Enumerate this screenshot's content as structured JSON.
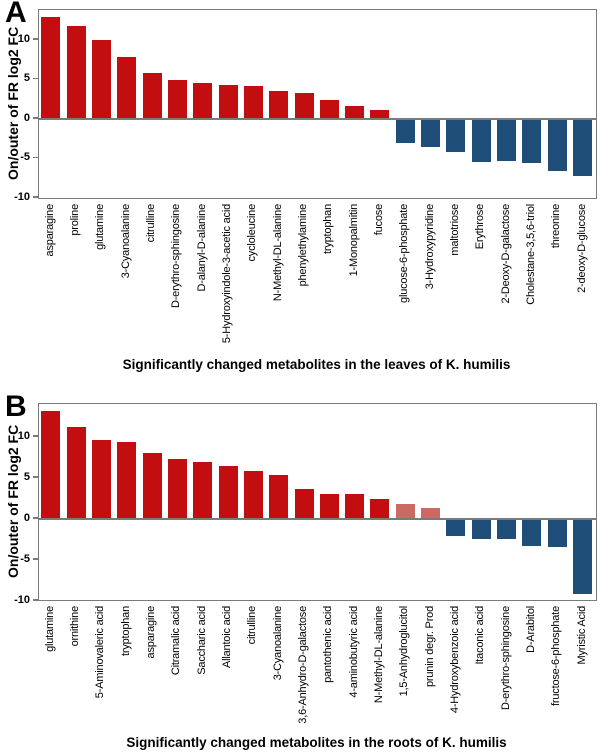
{
  "colors": {
    "red": "#c20d11",
    "pink": "#ca6a62",
    "blue": "#1f4e79",
    "axis": "#7a7a7a"
  },
  "chart_data": [
    {
      "panel": "A",
      "type": "bar",
      "title": "Significantly changed metabolites in the leaves of K. humilis",
      "ylabel": "On/outer of FR log2 FC",
      "ylim": [
        -10,
        13.8
      ],
      "yticks": [
        10,
        5,
        0,
        -5,
        -10
      ],
      "grid": false,
      "bars": [
        {
          "label": "asparagine",
          "value": 12.9,
          "color": "red"
        },
        {
          "label": "proline",
          "value": 11.8,
          "color": "red"
        },
        {
          "label": "glutamine",
          "value": 10.0,
          "color": "red"
        },
        {
          "label": "3-Cyanoalanine",
          "value": 7.8,
          "color": "red"
        },
        {
          "label": "citrulline",
          "value": 5.8,
          "color": "red"
        },
        {
          "label": "D-erythro-sphingosine",
          "value": 4.9,
          "color": "red"
        },
        {
          "label": "D-alanyl-D-alanine",
          "value": 4.6,
          "color": "red"
        },
        {
          "label": "5-Hydroxyindole-3-acetic acid",
          "value": 4.3,
          "color": "red"
        },
        {
          "label": "cycloleucine",
          "value": 4.2,
          "color": "red"
        },
        {
          "label": "N-Methyl-DL-alanine",
          "value": 3.5,
          "color": "red"
        },
        {
          "label": "phenylethylamine",
          "value": 3.3,
          "color": "red"
        },
        {
          "label": "tryptophan",
          "value": 2.4,
          "color": "red"
        },
        {
          "label": "1-Monopalmitin",
          "value": 1.7,
          "color": "red"
        },
        {
          "label": "fucose",
          "value": 1.1,
          "color": "red"
        },
        {
          "label": "glucose-6-phosphate",
          "value": -3.0,
          "color": "blue"
        },
        {
          "label": "3-Hydroxypyridine",
          "value": -3.5,
          "color": "blue"
        },
        {
          "label": "maltotriose",
          "value": -4.2,
          "color": "blue"
        },
        {
          "label": "Erythrose",
          "value": -5.4,
          "color": "blue"
        },
        {
          "label": "2-Deoxy-D-galactose",
          "value": -5.3,
          "color": "blue"
        },
        {
          "label": "Cholestane-3,5,6-triol",
          "value": -5.6,
          "color": "blue"
        },
        {
          "label": "threonine",
          "value": -6.6,
          "color": "blue"
        },
        {
          "label": "2-deoxy-D-glucose",
          "value": -7.2,
          "color": "blue"
        }
      ]
    },
    {
      "panel": "B",
      "type": "bar",
      "title": "Significantly changed metabolites in the roots of K. humilis",
      "ylabel": "On/outer of FR log2 FC",
      "ylim": [
        -10,
        13.9
      ],
      "yticks": [
        10,
        5,
        0,
        -5,
        -10
      ],
      "grid": false,
      "bars": [
        {
          "label": "glutamine",
          "value": 13.2,
          "color": "red"
        },
        {
          "label": "ornithine",
          "value": 11.2,
          "color": "red"
        },
        {
          "label": "5-Aminovaleric acid",
          "value": 9.6,
          "color": "red"
        },
        {
          "label": "tryptophan",
          "value": 9.4,
          "color": "red"
        },
        {
          "label": "asparagine",
          "value": 8.1,
          "color": "red"
        },
        {
          "label": "Citramalic acid",
          "value": 7.3,
          "color": "red"
        },
        {
          "label": "Saccharic acid",
          "value": 7.0,
          "color": "red"
        },
        {
          "label": "Allantoic acid",
          "value": 6.5,
          "color": "red"
        },
        {
          "label": "citrulline",
          "value": 5.9,
          "color": "red"
        },
        {
          "label": "3-Cyanoalanine",
          "value": 5.4,
          "color": "red"
        },
        {
          "label": "3,6-Anhydro-D-galactose",
          "value": 3.6,
          "color": "red"
        },
        {
          "label": "pantothenic acid",
          "value": 3.0,
          "color": "red"
        },
        {
          "label": "4-aminobutyric acid",
          "value": 3.0,
          "color": "red"
        },
        {
          "label": "N-Methyl-DL-alanine",
          "value": 2.4,
          "color": "red"
        },
        {
          "label": "1,5-Anhydroglucitol",
          "value": 1.8,
          "color": "pink"
        },
        {
          "label": "prunin degr. Prod",
          "value": 1.4,
          "color": "pink"
        },
        {
          "label": "4-Hydroxybenzoic acid",
          "value": -2.1,
          "color": "blue"
        },
        {
          "label": "Itaconic acid",
          "value": -2.4,
          "color": "blue"
        },
        {
          "label": "D-erythro-sphingosine",
          "value": -2.4,
          "color": "blue"
        },
        {
          "label": "D-Arabitol",
          "value": -3.3,
          "color": "blue"
        },
        {
          "label": "fructose-6-phosphate",
          "value": -3.4,
          "color": "blue"
        },
        {
          "label": "Myristic Acid",
          "value": -9.2,
          "color": "blue"
        }
      ]
    }
  ]
}
